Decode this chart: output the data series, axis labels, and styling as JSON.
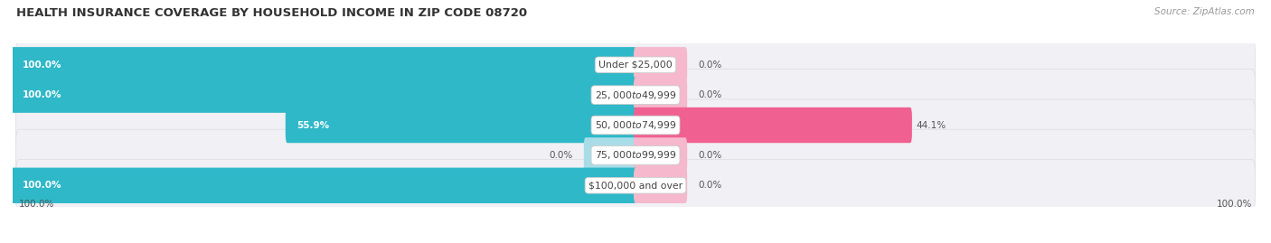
{
  "title": "HEALTH INSURANCE COVERAGE BY HOUSEHOLD INCOME IN ZIP CODE 08720",
  "source": "Source: ZipAtlas.com",
  "categories": [
    "Under $25,000",
    "$25,000 to $49,999",
    "$50,000 to $74,999",
    "$75,000 to $99,999",
    "$100,000 and over"
  ],
  "with_coverage": [
    100.0,
    100.0,
    55.9,
    0.0,
    100.0
  ],
  "without_coverage": [
    0.0,
    0.0,
    44.1,
    0.0,
    0.0
  ],
  "color_with": "#2eb8c8",
  "color_without": "#f06090",
  "color_with_light": "#a8dde8",
  "color_without_light": "#f5b8cc",
  "bg_color": "#ffffff",
  "row_bg_color": "#f0f0f5",
  "label_color": "#555555",
  "title_color": "#333333",
  "source_color": "#999999",
  "figsize": [
    14.06,
    2.69
  ],
  "dpi": 100,
  "bottom_left_label": "100.0%",
  "bottom_right_label": "100.0%"
}
